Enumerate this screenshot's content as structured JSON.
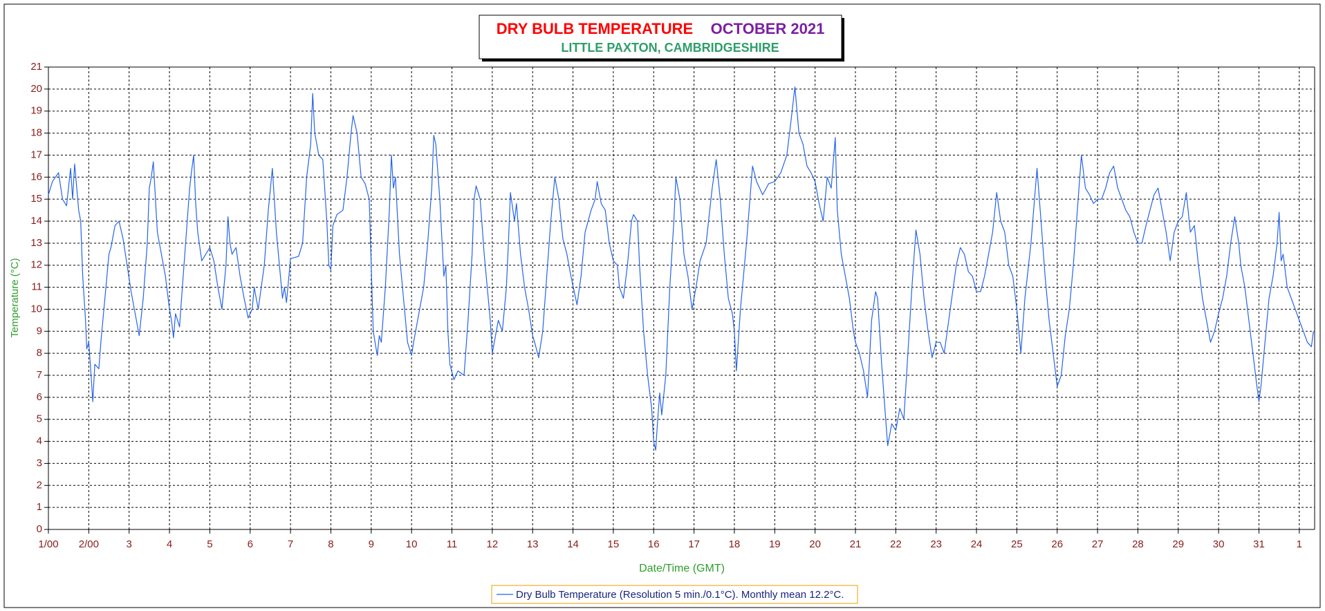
{
  "chart_data": {
    "type": "line",
    "title": "DRY BULB TEMPERATURE",
    "title_right": "OCTOBER 2021",
    "subtitle": "LITTLE PAXTON, CAMBRIDGESHIRE",
    "xlabel": "Date/Time (GMT)",
    "ylabel": "Temperature (°C)",
    "xlim": [
      0,
      31.38
    ],
    "ylim": [
      0,
      21
    ],
    "grid": true,
    "xticks": [
      {
        "value": 0,
        "label": "1/00"
      },
      {
        "value": 1,
        "label": "2/00"
      },
      {
        "value": 2,
        "label": "3"
      },
      {
        "value": 3,
        "label": "4"
      },
      {
        "value": 4,
        "label": "5"
      },
      {
        "value": 5,
        "label": "6"
      },
      {
        "value": 6,
        "label": "7"
      },
      {
        "value": 7,
        "label": "8"
      },
      {
        "value": 8,
        "label": "9"
      },
      {
        "value": 9,
        "label": "10"
      },
      {
        "value": 10,
        "label": "11"
      },
      {
        "value": 11,
        "label": "12"
      },
      {
        "value": 12,
        "label": "13"
      },
      {
        "value": 13,
        "label": "14"
      },
      {
        "value": 14,
        "label": "15"
      },
      {
        "value": 15,
        "label": "16"
      },
      {
        "value": 16,
        "label": "17"
      },
      {
        "value": 17,
        "label": "18"
      },
      {
        "value": 18,
        "label": "19"
      },
      {
        "value": 19,
        "label": "20"
      },
      {
        "value": 20,
        "label": "21"
      },
      {
        "value": 21,
        "label": "22"
      },
      {
        "value": 22,
        "label": "23"
      },
      {
        "value": 23,
        "label": "24"
      },
      {
        "value": 24,
        "label": "25"
      },
      {
        "value": 25,
        "label": "26"
      },
      {
        "value": 26,
        "label": "27"
      },
      {
        "value": 27,
        "label": "28"
      },
      {
        "value": 28,
        "label": "29"
      },
      {
        "value": 29,
        "label": "30"
      },
      {
        "value": 30,
        "label": "31"
      },
      {
        "value": 31,
        "label": "1"
      }
    ],
    "yticks": [
      0,
      1,
      2,
      3,
      4,
      5,
      6,
      7,
      8,
      9,
      10,
      11,
      12,
      13,
      14,
      15,
      16,
      17,
      18,
      19,
      20,
      21
    ],
    "x": [
      0,
      0.1,
      0.25,
      0.35,
      0.45,
      0.55,
      0.6,
      0.65,
      0.75,
      0.8,
      0.85,
      0.92,
      0.95,
      1.0,
      1.05,
      1.1,
      1.15,
      1.25,
      1.3,
      1.4,
      1.5,
      1.55,
      1.65,
      1.75,
      1.85,
      1.95,
      2.05,
      2.15,
      2.25,
      2.35,
      2.45,
      2.5,
      2.55,
      2.6,
      2.7,
      2.8,
      2.9,
      3.0,
      3.05,
      3.1,
      3.15,
      3.25,
      3.3,
      3.4,
      3.5,
      3.55,
      3.6,
      3.65,
      3.7,
      3.8,
      3.9,
      4.0,
      4.1,
      4.2,
      4.3,
      4.4,
      4.45,
      4.5,
      4.55,
      4.65,
      4.75,
      4.85,
      4.95,
      5.05,
      5.1,
      5.2,
      5.35,
      5.45,
      5.55,
      5.65,
      5.75,
      5.8,
      5.85,
      5.9,
      6.0,
      6.2,
      6.3,
      6.4,
      6.5,
      6.55,
      6.6,
      6.7,
      6.8,
      6.9,
      6.95,
      7.0,
      7.05,
      7.15,
      7.3,
      7.4,
      7.5,
      7.55,
      7.65,
      7.75,
      7.85,
      7.95,
      8.0,
      8.05,
      8.15,
      8.2,
      8.25,
      8.35,
      8.45,
      8.5,
      8.55,
      8.6,
      8.7,
      8.8,
      8.9,
      9.0,
      9.05,
      9.15,
      9.3,
      9.4,
      9.5,
      9.55,
      9.6,
      9.7,
      9.8,
      9.85,
      9.9,
      9.95,
      10.05,
      10.15,
      10.3,
      10.4,
      10.5,
      10.55,
      10.6,
      10.7,
      10.8,
      10.9,
      10.95,
      11.0,
      11.05,
      11.15,
      11.25,
      11.35,
      11.4,
      11.45,
      11.55,
      11.6,
      11.7,
      11.8,
      11.9,
      12.0,
      12.05,
      12.15,
      12.25,
      12.35,
      12.45,
      12.55,
      12.65,
      12.75,
      12.85,
      12.95,
      13.1,
      13.2,
      13.3,
      13.45,
      13.55,
      13.6,
      13.7,
      13.8,
      13.9,
      14.0,
      14.1,
      14.15,
      14.25,
      14.35,
      14.45,
      14.5,
      14.6,
      14.65,
      14.75,
      14.85,
      14.95,
      15.0,
      15.05,
      15.1,
      15.15,
      15.2,
      15.3,
      15.4,
      15.5,
      15.55,
      15.65,
      15.75,
      15.85,
      15.95,
      16.05,
      16.15,
      16.3,
      16.45,
      16.55,
      16.65,
      16.75,
      16.85,
      16.95,
      17.0,
      17.05,
      17.15,
      17.3,
      17.45,
      17.55,
      17.7,
      17.85,
      18.0,
      18.15,
      18.3,
      18.4,
      18.5,
      18.6,
      18.7,
      18.8,
      18.9,
      19.0,
      19.1,
      19.2,
      19.3,
      19.4,
      19.5,
      19.55,
      19.65,
      19.75,
      19.85,
      19.95,
      20.0,
      20.1,
      20.2,
      20.3,
      20.4,
      20.5,
      20.55,
      20.65,
      20.75,
      20.8,
      20.9,
      21.0,
      21.1,
      21.2,
      21.3,
      21.4,
      21.5,
      21.6,
      21.7,
      21.8,
      21.9,
      22.0,
      22.1,
      22.2,
      22.35,
      22.5,
      22.6,
      22.7,
      22.8,
      22.9,
      23.0,
      23.1,
      23.2,
      23.3,
      23.4,
      23.5,
      23.6,
      23.7,
      23.8,
      23.9,
      24.0,
      24.1,
      24.2,
      24.35,
      24.5,
      24.6,
      24.7,
      24.8,
      24.9,
      25.0,
      25.1,
      25.2,
      25.3,
      25.4,
      25.5,
      25.6,
      25.7,
      25.8,
      25.9,
      26.0,
      26.1,
      26.2,
      26.3,
      26.4,
      26.5,
      26.6,
      26.7,
      26.8,
      26.9,
      27.0,
      27.1,
      27.2,
      27.3,
      27.4,
      27.5,
      27.6,
      27.7,
      27.8,
      27.9,
      28.0,
      28.1,
      28.2,
      28.3,
      28.4,
      28.5,
      28.6,
      28.7,
      28.8,
      28.9,
      29.0,
      29.1,
      29.2,
      29.3,
      29.4,
      29.5,
      29.55,
      29.65,
      29.75,
      29.85,
      29.95,
      30.0,
      30.05,
      30.15,
      30.25,
      30.35,
      30.45,
      30.5,
      30.55,
      30.6,
      30.7,
      30.8,
      30.9,
      31.0,
      31.1,
      31.2,
      31.3,
      31.35
    ],
    "series": [
      {
        "name": "Dry Bulb Temperature (Resolution 5 min./0.1°C). Monthly mean 12.2°C.",
        "color": "#2563eb",
        "values": [
          15.2,
          15.8,
          16.2,
          15.0,
          14.7,
          16.4,
          15.0,
          16.6,
          14.5,
          14.0,
          11.5,
          9.5,
          8.2,
          8.5,
          7.2,
          5.8,
          7.5,
          7.3,
          8.5,
          10.5,
          12.5,
          12.8,
          13.8,
          14.0,
          13.2,
          12.0,
          10.8,
          9.8,
          8.8,
          10.5,
          13.0,
          15.5,
          16.0,
          16.7,
          13.5,
          12.5,
          11.5,
          10.0,
          9.5,
          8.7,
          9.8,
          9.2,
          10.5,
          13.0,
          15.5,
          16.3,
          17.0,
          14.8,
          13.5,
          12.2,
          12.5,
          12.8,
          12.2,
          11.0,
          10.0,
          12.0,
          14.2,
          13.0,
          12.5,
          12.8,
          11.5,
          10.5,
          9.6,
          10.0,
          11.0,
          10.0,
          12.0,
          14.5,
          16.4,
          13.5,
          11.5,
          10.5,
          11.0,
          10.3,
          12.3,
          12.4,
          13.0,
          16.0,
          17.5,
          19.8,
          18.0,
          17.0,
          16.8,
          14.0,
          12.0,
          11.8,
          13.8,
          14.3,
          14.5,
          16.0,
          18.0,
          18.8,
          18.0,
          16.0,
          15.7,
          15.0,
          12.0,
          9.0,
          7.9,
          8.8,
          8.5,
          11.0,
          14.5,
          17.0,
          15.5,
          16.0,
          12.5,
          10.5,
          8.5,
          7.9,
          8.5,
          9.5,
          11.0,
          13.0,
          15.5,
          17.9,
          17.5,
          15.0,
          11.5,
          12.0,
          9.0,
          7.5,
          6.8,
          7.2,
          7.0,
          9.5,
          12.5,
          15.0,
          15.6,
          15.0,
          12.5,
          10.5,
          9.5,
          8.0,
          8.5,
          9.5,
          9.0,
          11.0,
          13.0,
          15.3,
          14.0,
          14.8,
          12.5,
          11.0,
          10.0,
          8.8,
          8.5,
          7.8,
          9.0,
          11.5,
          14.0,
          16.0,
          15.0,
          13.2,
          12.5,
          11.5,
          10.2,
          11.5,
          13.5,
          14.5,
          15.0,
          15.8,
          14.8,
          14.5,
          13.0,
          12.2,
          12.0,
          11.0,
          10.5,
          12.0,
          14.0,
          14.3,
          14.0,
          12.0,
          9.0,
          7.0,
          5.5,
          4.0,
          3.6,
          5.0,
          6.2,
          5.2,
          7.0,
          11.0,
          14.0,
          16.0,
          15.0,
          12.5,
          11.5,
          10.0,
          11.0,
          12.2,
          13.0,
          15.5,
          16.8,
          15.0,
          12.5,
          10.5,
          9.8,
          9.0,
          7.2,
          10.0,
          13.0,
          16.5,
          15.8,
          15.2,
          15.7,
          15.8,
          16.2,
          17.0,
          18.5,
          20.1,
          18.0,
          17.5,
          16.5,
          16.2,
          15.8,
          14.8,
          14.0,
          16.0,
          15.5,
          17.8,
          14.5,
          12.5,
          11.5,
          10.5,
          9.0,
          8.5,
          8.0,
          7.2,
          6.0,
          9.5,
          10.8,
          10.5,
          7.5,
          5.0,
          3.8,
          4.8,
          4.5,
          5.5,
          5.0,
          8.0,
          11.0,
          13.6,
          12.5,
          10.5,
          9.0,
          7.8,
          8.5,
          8.5,
          8.0,
          10.0,
          12.0,
          12.8,
          12.5,
          11.7,
          11.5,
          10.8,
          10.8,
          11.5,
          12.5,
          13.5,
          15.3,
          14.0,
          13.5,
          12.0,
          11.5,
          10.0,
          8.0,
          10.5,
          13.0,
          16.4,
          14.0,
          11.5,
          9.5,
          8.0,
          6.5,
          7.0,
          8.8,
          10.0,
          12.0,
          14.5,
          17.0,
          15.5,
          15.2,
          14.8,
          15.0,
          15.0,
          15.5,
          16.2,
          16.5,
          15.5,
          15.0,
          14.5,
          14.2,
          13.5,
          13.0,
          13.0,
          13.8,
          14.5,
          15.2,
          15.5,
          14.5,
          13.5,
          12.2,
          13.5,
          14.0,
          14.2,
          15.3,
          13.5,
          13.8,
          12.0,
          10.5,
          9.5,
          8.5,
          9.0,
          9.8,
          10.5,
          11.5,
          13.0,
          14.2,
          13.0,
          12.0,
          11.0,
          9.5,
          8.0,
          6.5,
          5.8,
          6.5,
          8.5,
          10.5,
          11.5,
          13.0,
          14.4,
          12.2,
          12.5,
          11.0,
          10.5,
          10.0,
          9.5,
          9.0,
          8.5,
          8.3,
          9.0
        ]
      }
    ]
  }
}
